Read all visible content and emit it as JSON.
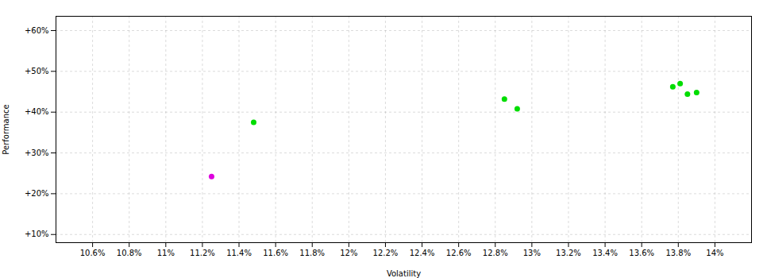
{
  "chart_data": {
    "type": "scatter",
    "xlabel": "Volatility",
    "ylabel": "Performance",
    "xlim": [
      0.104,
      0.142
    ],
    "ylim": [
      0.08,
      0.635
    ],
    "xticks": [
      {
        "value": 0.106,
        "label": "10.6%"
      },
      {
        "value": 0.108,
        "label": "10.8%"
      },
      {
        "value": 0.11,
        "label": "11%"
      },
      {
        "value": 0.112,
        "label": "11.2%"
      },
      {
        "value": 0.114,
        "label": "11.4%"
      },
      {
        "value": 0.116,
        "label": "11.6%"
      },
      {
        "value": 0.118,
        "label": "11.8%"
      },
      {
        "value": 0.12,
        "label": "12%"
      },
      {
        "value": 0.122,
        "label": "12.2%"
      },
      {
        "value": 0.124,
        "label": "12.4%"
      },
      {
        "value": 0.126,
        "label": "12.6%"
      },
      {
        "value": 0.128,
        "label": "12.8%"
      },
      {
        "value": 0.13,
        "label": "13%"
      },
      {
        "value": 0.132,
        "label": "13.2%"
      },
      {
        "value": 0.134,
        "label": "13.4%"
      },
      {
        "value": 0.136,
        "label": "13.6%"
      },
      {
        "value": 0.138,
        "label": "13.8%"
      },
      {
        "value": 0.14,
        "label": "14%"
      }
    ],
    "yticks": [
      {
        "value": 0.1,
        "label": "+10%"
      },
      {
        "value": 0.2,
        "label": "+20%"
      },
      {
        "value": 0.3,
        "label": "+30%"
      },
      {
        "value": 0.4,
        "label": "+40%"
      },
      {
        "value": 0.5,
        "label": "+50%"
      },
      {
        "value": 0.6,
        "label": "+60%"
      }
    ],
    "grid": true,
    "series": [
      {
        "color": "#00dd00",
        "x": [
          0.1148,
          0.1285,
          0.1292,
          0.1377,
          0.1381,
          0.1385,
          0.139
        ],
        "values": [
          0.375,
          0.432,
          0.408,
          0.462,
          0.47,
          0.444,
          0.448
        ]
      },
      {
        "color": "#dd00dd",
        "x": [
          0.1125
        ],
        "values": [
          0.242
        ]
      }
    ]
  }
}
